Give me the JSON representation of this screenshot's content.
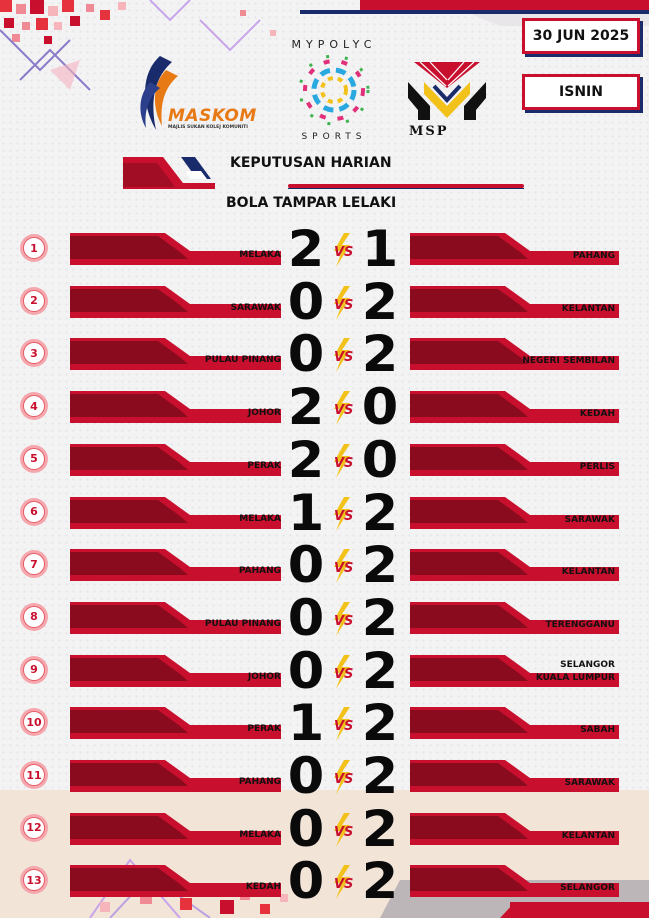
{
  "header": {
    "date": "30 JUN 2025",
    "day": "ISNIN",
    "title": "KEPUTUSAN HARIAN",
    "subtitle": "BOLA TAMPAR LELAKI"
  },
  "logos": {
    "maskom": "MASKOM",
    "maskom_sub": "MAJLIS SUKAN KOLEJ KOMUNITI",
    "mypolyc": "MYPOLYC SPORTS",
    "msp": "MSP"
  },
  "colors": {
    "accent": "#c8102e",
    "navy": "#1a2b6b"
  },
  "vs_label": "VS",
  "matches": [
    {
      "no": "1",
      "home": "MELAKA",
      "home_score": "2",
      "away_score": "1",
      "away": [
        "PAHANG"
      ]
    },
    {
      "no": "2",
      "home": "SARAWAK",
      "home_score": "0",
      "away_score": "2",
      "away": [
        "KELANTAN"
      ]
    },
    {
      "no": "3",
      "home": "PULAU PINANG",
      "home_score": "0",
      "away_score": "2",
      "away": [
        "NEGERI SEMBILAN"
      ]
    },
    {
      "no": "4",
      "home": "JOHOR",
      "home_score": "2",
      "away_score": "0",
      "away": [
        "KEDAH"
      ]
    },
    {
      "no": "5",
      "home": "PERAK",
      "home_score": "2",
      "away_score": "0",
      "away": [
        "PERLIS"
      ]
    },
    {
      "no": "6",
      "home": "MELAKA",
      "home_score": "1",
      "away_score": "2",
      "away": [
        "SARAWAK"
      ]
    },
    {
      "no": "7",
      "home": "PAHANG",
      "home_score": "0",
      "away_score": "2",
      "away": [
        "KELANTAN"
      ]
    },
    {
      "no": "8",
      "home": "PULAU PINANG",
      "home_score": "0",
      "away_score": "2",
      "away": [
        "TERENGGANU"
      ]
    },
    {
      "no": "9",
      "home": "JOHOR",
      "home_score": "0",
      "away_score": "2",
      "away": [
        "SELANGOR",
        "KUALA LUMPUR"
      ]
    },
    {
      "no": "10",
      "home": "PERAK",
      "home_score": "1",
      "away_score": "2",
      "away": [
        "SABAH"
      ]
    },
    {
      "no": "11",
      "home": "PAHANG",
      "home_score": "0",
      "away_score": "2",
      "away": [
        "SARAWAK"
      ]
    },
    {
      "no": "12",
      "home": "MELAKA",
      "home_score": "0",
      "away_score": "2",
      "away": [
        "KELANTAN"
      ]
    },
    {
      "no": "13",
      "home": "KEDAH",
      "home_score": "0",
      "away_score": "2",
      "away": [
        "SELANGOR"
      ]
    }
  ]
}
